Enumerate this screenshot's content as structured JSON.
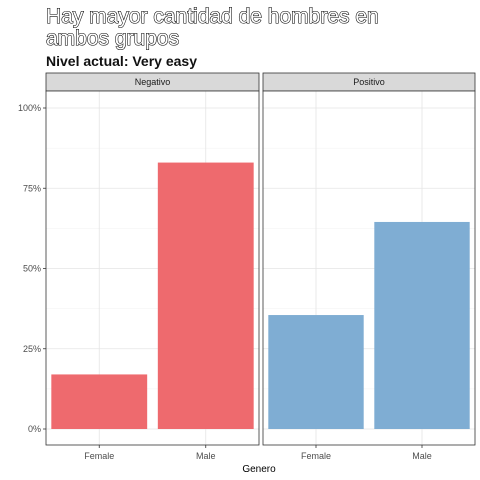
{
  "chart_data": {
    "type": "bar",
    "title_lines": [
      "Hay mayor cantidad de hombres en",
      "ambos grupos"
    ],
    "subtitle": "Nivel actual: Very easy",
    "xlabel": "Genero",
    "ylabel": "",
    "ylim": [
      0,
      1
    ],
    "y_ticks": [
      {
        "value": 0,
        "label": "0%"
      },
      {
        "value": 0.25,
        "label": "25%"
      },
      {
        "value": 0.5,
        "label": "50%"
      },
      {
        "value": 0.75,
        "label": "75%"
      },
      {
        "value": 1.0,
        "label": "100%"
      }
    ],
    "categories": [
      "Female",
      "Male"
    ],
    "grid": true,
    "legend": "none",
    "facets": [
      {
        "name": "Negativo",
        "color": "#EE6A6E",
        "values": [
          0.17,
          0.83
        ]
      },
      {
        "name": "Positivo",
        "color": "#7FADD3",
        "values": [
          0.355,
          0.645
        ]
      }
    ]
  }
}
